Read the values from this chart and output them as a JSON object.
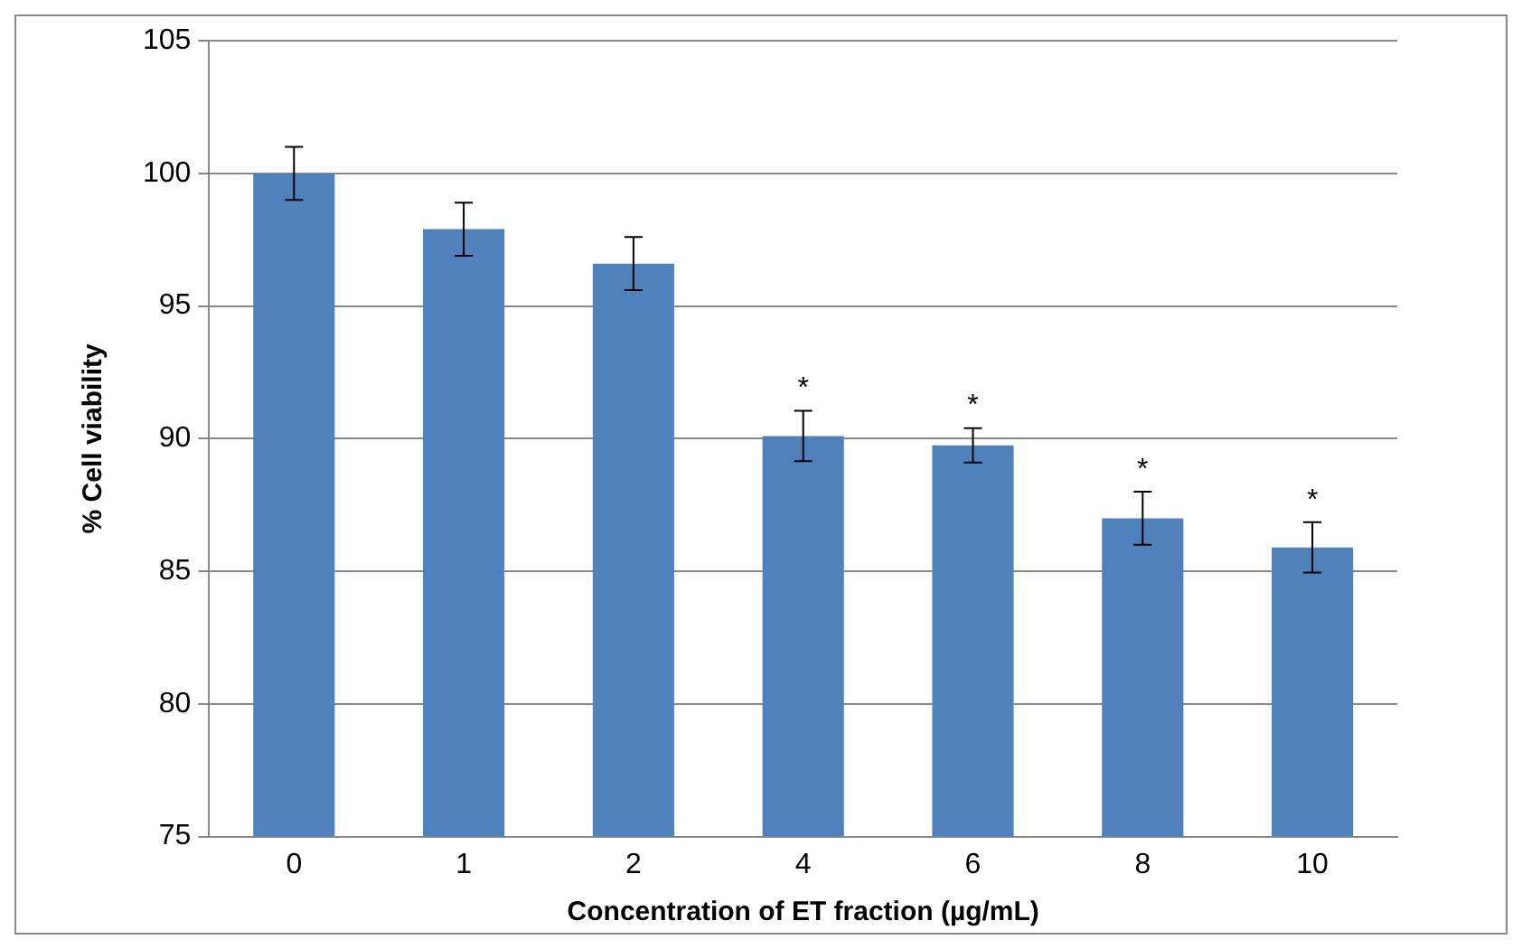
{
  "chart_data": {
    "type": "bar",
    "xlabel": "Concentration of ET fraction (µg/mL)",
    "ylabel": "% Cell viability",
    "categories": [
      "0",
      "1",
      "2",
      "4",
      "6",
      "8",
      "10"
    ],
    "values": [
      100,
      97.9,
      96.6,
      90.1,
      89.75,
      87.0,
      85.9
    ],
    "errors": [
      1.0,
      1.0,
      1.0,
      0.95,
      0.65,
      1.0,
      0.95
    ],
    "color": "#4f81bd",
    "ylim": [
      75,
      105
    ],
    "yticks": [
      75,
      80,
      85,
      90,
      95,
      100,
      105
    ],
    "grid": "y",
    "legend": false,
    "annotations": [
      {
        "text": "*",
        "x": "4",
        "y": 91.05
      },
      {
        "text": "*",
        "x": "6",
        "y": 90.4
      },
      {
        "text": "*",
        "x": "8",
        "y": 88.0
      },
      {
        "text": "*",
        "x": "10",
        "y": 86.85
      }
    ]
  }
}
